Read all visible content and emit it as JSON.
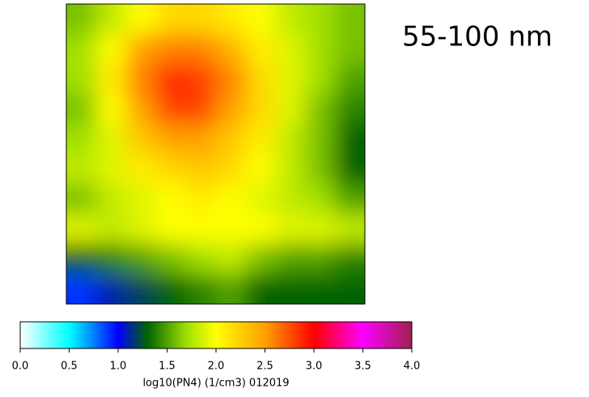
{
  "chart_data": {
    "type": "heatmap",
    "title": "55-100 nm",
    "colorbar_label": "log10(PN4) (1/cm3) 012019",
    "clim": [
      0,
      4
    ],
    "cticks": [
      {
        "value": 0,
        "label": "0.0"
      },
      {
        "value": 0.5,
        "label": "0.5"
      },
      {
        "value": 1,
        "label": "1.0"
      },
      {
        "value": 1.5,
        "label": "1.5"
      },
      {
        "value": 2,
        "label": "2.0"
      },
      {
        "value": 2.5,
        "label": "2.5"
      },
      {
        "value": 3,
        "label": "3.0"
      },
      {
        "value": 3.5,
        "label": "3.5"
      },
      {
        "value": 4,
        "label": "4.0"
      }
    ],
    "colormap": [
      {
        "value": 0,
        "color": "#ffffff"
      },
      {
        "value": 0.5,
        "color": "#00ffff"
      },
      {
        "value": 1,
        "color": "#0000ff"
      },
      {
        "value": 1.3,
        "color": "#006400"
      },
      {
        "value": 1.7,
        "color": "#a0e000"
      },
      {
        "value": 2,
        "color": "#ffff00"
      },
      {
        "value": 2.5,
        "color": "#ffa000"
      },
      {
        "value": 3,
        "color": "#ff0000"
      },
      {
        "value": 3.5,
        "color": "#ff00ff"
      },
      {
        "value": 4,
        "color": "#a02050"
      }
    ],
    "values": [
      [
        1.6,
        1.8,
        2.0,
        2.2,
        2.2,
        2.1,
        2.0,
        1.8,
        1.7,
        1.6
      ],
      [
        1.7,
        2.0,
        2.5,
        2.6,
        2.6,
        2.4,
        2.1,
        1.9,
        1.7,
        1.6
      ],
      [
        1.7,
        2.1,
        2.6,
        2.9,
        2.8,
        2.6,
        2.2,
        1.9,
        1.7,
        1.5
      ],
      [
        1.6,
        2.0,
        2.5,
        2.8,
        2.8,
        2.5,
        2.2,
        1.9,
        1.6,
        1.4
      ],
      [
        1.7,
        1.9,
        2.3,
        2.5,
        2.5,
        2.3,
        2.1,
        1.8,
        1.6,
        1.3
      ],
      [
        1.8,
        1.9,
        2.1,
        2.2,
        2.3,
        2.2,
        2.0,
        1.8,
        1.6,
        1.3
      ],
      [
        1.6,
        1.8,
        1.9,
        2.0,
        2.1,
        2.0,
        1.9,
        1.8,
        1.7,
        1.5
      ],
      [
        1.9,
        1.8,
        1.9,
        2.0,
        2.0,
        2.0,
        2.0,
        1.9,
        1.9,
        1.8
      ],
      [
        1.3,
        1.4,
        1.5,
        1.6,
        1.7,
        1.8,
        1.6,
        1.5,
        1.5,
        1.4
      ],
      [
        0.9,
        1.1,
        1.2,
        1.3,
        1.4,
        1.5,
        1.3,
        1.3,
        1.3,
        1.3
      ]
    ]
  }
}
